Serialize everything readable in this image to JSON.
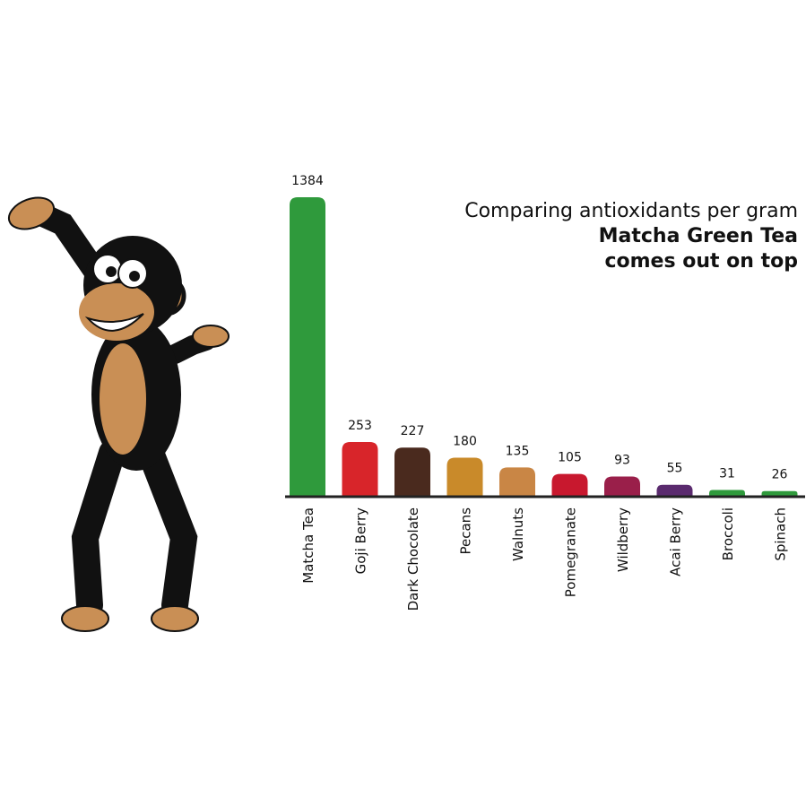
{
  "chart_data": {
    "type": "bar",
    "title": "Comparing antioxidants per gram",
    "subtitle": [
      "Matcha Green Tea",
      "comes out on top"
    ],
    "categories": [
      "Matcha Tea",
      "Goji Berry",
      "Dark Chocolate",
      "Pecans",
      "Walnuts",
      "Pomegranate",
      "Wildberry",
      "Acai Berry",
      "Broccoli",
      "Spinach"
    ],
    "values": [
      1384,
      253,
      227,
      180,
      135,
      105,
      93,
      55,
      31,
      26
    ],
    "colors": [
      "#2f9a3c",
      "#d8252a",
      "#4a2a1e",
      "#c98a2a",
      "#c98645",
      "#c8182e",
      "#9a1f4a",
      "#5a2a6e",
      "#2f9a3c",
      "#2f9a3c"
    ]
  }
}
